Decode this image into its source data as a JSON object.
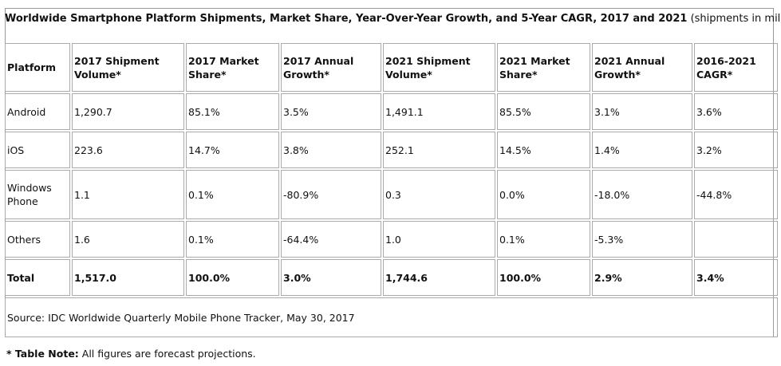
{
  "title": {
    "main": "Worldwide Smartphone Platform Shipments, Market Share, Year-Over-Year Growth, and 5-Year CAGR, 2017 and 2021",
    "suffix": " (shipments in millions)"
  },
  "table": {
    "headers": [
      "Platform",
      "2017 Shipment Volume*",
      "2017 Market Share*",
      "2017 Annual Growth*",
      "2021 Shipment Volume*",
      "2021 Market Share*",
      "2021 Annual Growth*",
      "2016-2021 CAGR*"
    ],
    "rows": [
      [
        "Android",
        "1,290.7",
        "85.1%",
        "3.5%",
        "1,491.1",
        "85.5%",
        "3.1%",
        "3.6%"
      ],
      [
        "iOS",
        "223.6",
        "14.7%",
        "3.8%",
        "252.1",
        "14.5%",
        "1.4%",
        "3.2%"
      ],
      [
        "Windows Phone",
        "1.1",
        "0.1%",
        "-80.9%",
        "0.3",
        "0.0%",
        "-18.0%",
        "-44.8%"
      ],
      [
        "Others",
        "1.6",
        "0.1%",
        "-64.4%",
        "1.0",
        "0.1%",
        "-5.3%",
        ""
      ]
    ],
    "total": [
      "Total",
      "1,517.0",
      "100.0%",
      "3.0%",
      "1,744.6",
      "100.0%",
      "2.9%",
      "3.4%"
    ],
    "source": "Source: IDC Worldwide Quarterly Mobile Phone Tracker, May 30, 2017"
  },
  "note": {
    "label": "* Table Note:",
    "text": " All figures are forecast projections."
  }
}
